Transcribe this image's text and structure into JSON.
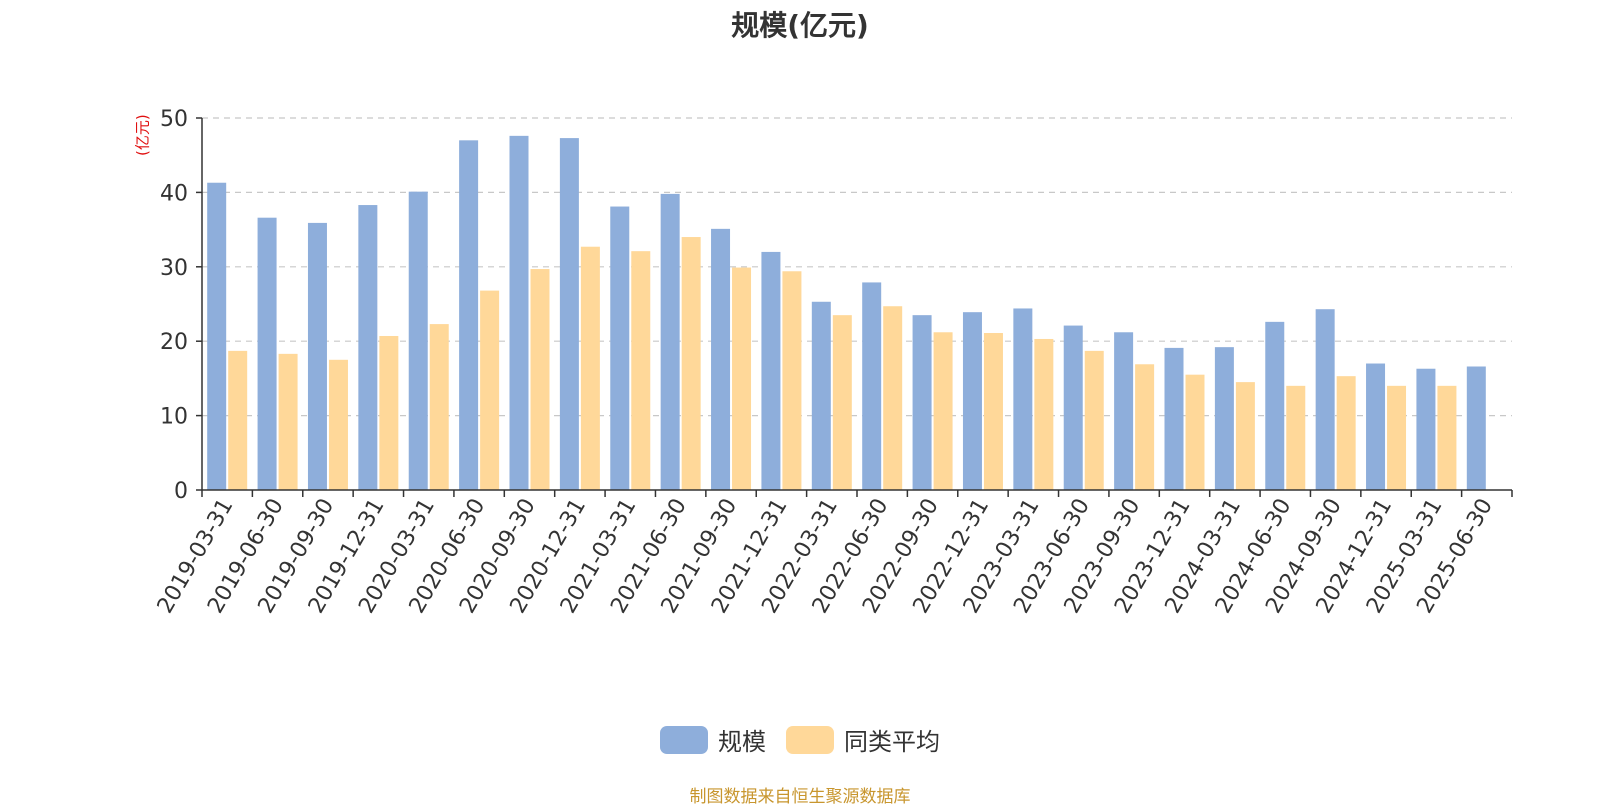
{
  "chart_data": {
    "type": "bar",
    "title": "规模(亿元)",
    "ylabel": "(亿元)",
    "xlabel": "",
    "ylim": [
      0,
      50
    ],
    "yticks": [
      0,
      10,
      20,
      30,
      40,
      50
    ],
    "grid": true,
    "legend_position": "bottom",
    "categories": [
      "2019-03-31",
      "2019-06-30",
      "2019-09-30",
      "2019-12-31",
      "2020-03-31",
      "2020-06-30",
      "2020-09-30",
      "2020-12-31",
      "2021-03-31",
      "2021-06-30",
      "2021-09-30",
      "2021-12-31",
      "2022-03-31",
      "2022-06-30",
      "2022-09-30",
      "2022-12-31",
      "2023-03-31",
      "2023-06-30",
      "2023-09-30",
      "2023-12-31",
      "2024-03-31",
      "2024-06-30",
      "2024-09-30",
      "2024-12-31",
      "2025-03-31",
      "2025-06-30"
    ],
    "series": [
      {
        "name": "规模",
        "color": "#8eaedb",
        "values": [
          41.3,
          36.6,
          35.9,
          38.3,
          40.1,
          47.0,
          47.6,
          47.3,
          38.1,
          39.8,
          35.1,
          32.0,
          25.3,
          27.9,
          23.5,
          23.9,
          24.4,
          22.1,
          21.2,
          19.1,
          19.2,
          22.6,
          24.3,
          17.0,
          16.3,
          16.6
        ]
      },
      {
        "name": "同类平均",
        "color": "#ffd899",
        "values": [
          18.7,
          18.3,
          17.5,
          20.7,
          22.3,
          26.8,
          29.7,
          32.7,
          32.1,
          34.0,
          29.9,
          29.4,
          23.5,
          24.7,
          21.2,
          21.1,
          20.3,
          18.7,
          16.9,
          15.5,
          14.5,
          14.0,
          15.3,
          14.0,
          14.0,
          null
        ]
      }
    ]
  },
  "source_note": "制图数据来自恒生聚源数据库"
}
